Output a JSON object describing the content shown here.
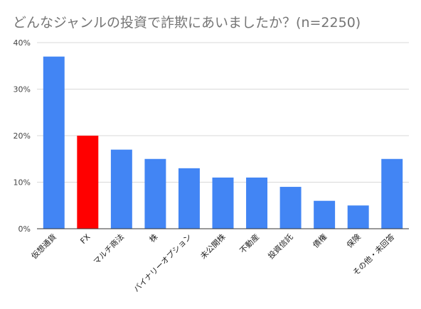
{
  "chart_data": {
    "type": "bar",
    "title": "どんなジャンルの投資で詐欺にあいましたか？(n=2250)",
    "xlabel": "",
    "ylabel": "",
    "ylim": [
      0,
      40
    ],
    "yticks": [
      "0%",
      "10%",
      "20%",
      "30%",
      "40%"
    ],
    "grid": true,
    "categories": [
      "仮想通貨",
      "FX",
      "マルチ商法",
      "株",
      "バイナリーオプション",
      "未公開株",
      "不動産",
      "投資信託",
      "債権",
      "保険",
      "その他・未回答"
    ],
    "values": [
      37,
      20,
      17,
      15,
      13,
      11,
      11,
      9,
      6,
      5,
      15
    ],
    "colors": [
      "#4285f4",
      "#ff0000",
      "#4285f4",
      "#4285f4",
      "#4285f4",
      "#4285f4",
      "#4285f4",
      "#4285f4",
      "#4285f4",
      "#4285f4",
      "#4285f4"
    ]
  }
}
